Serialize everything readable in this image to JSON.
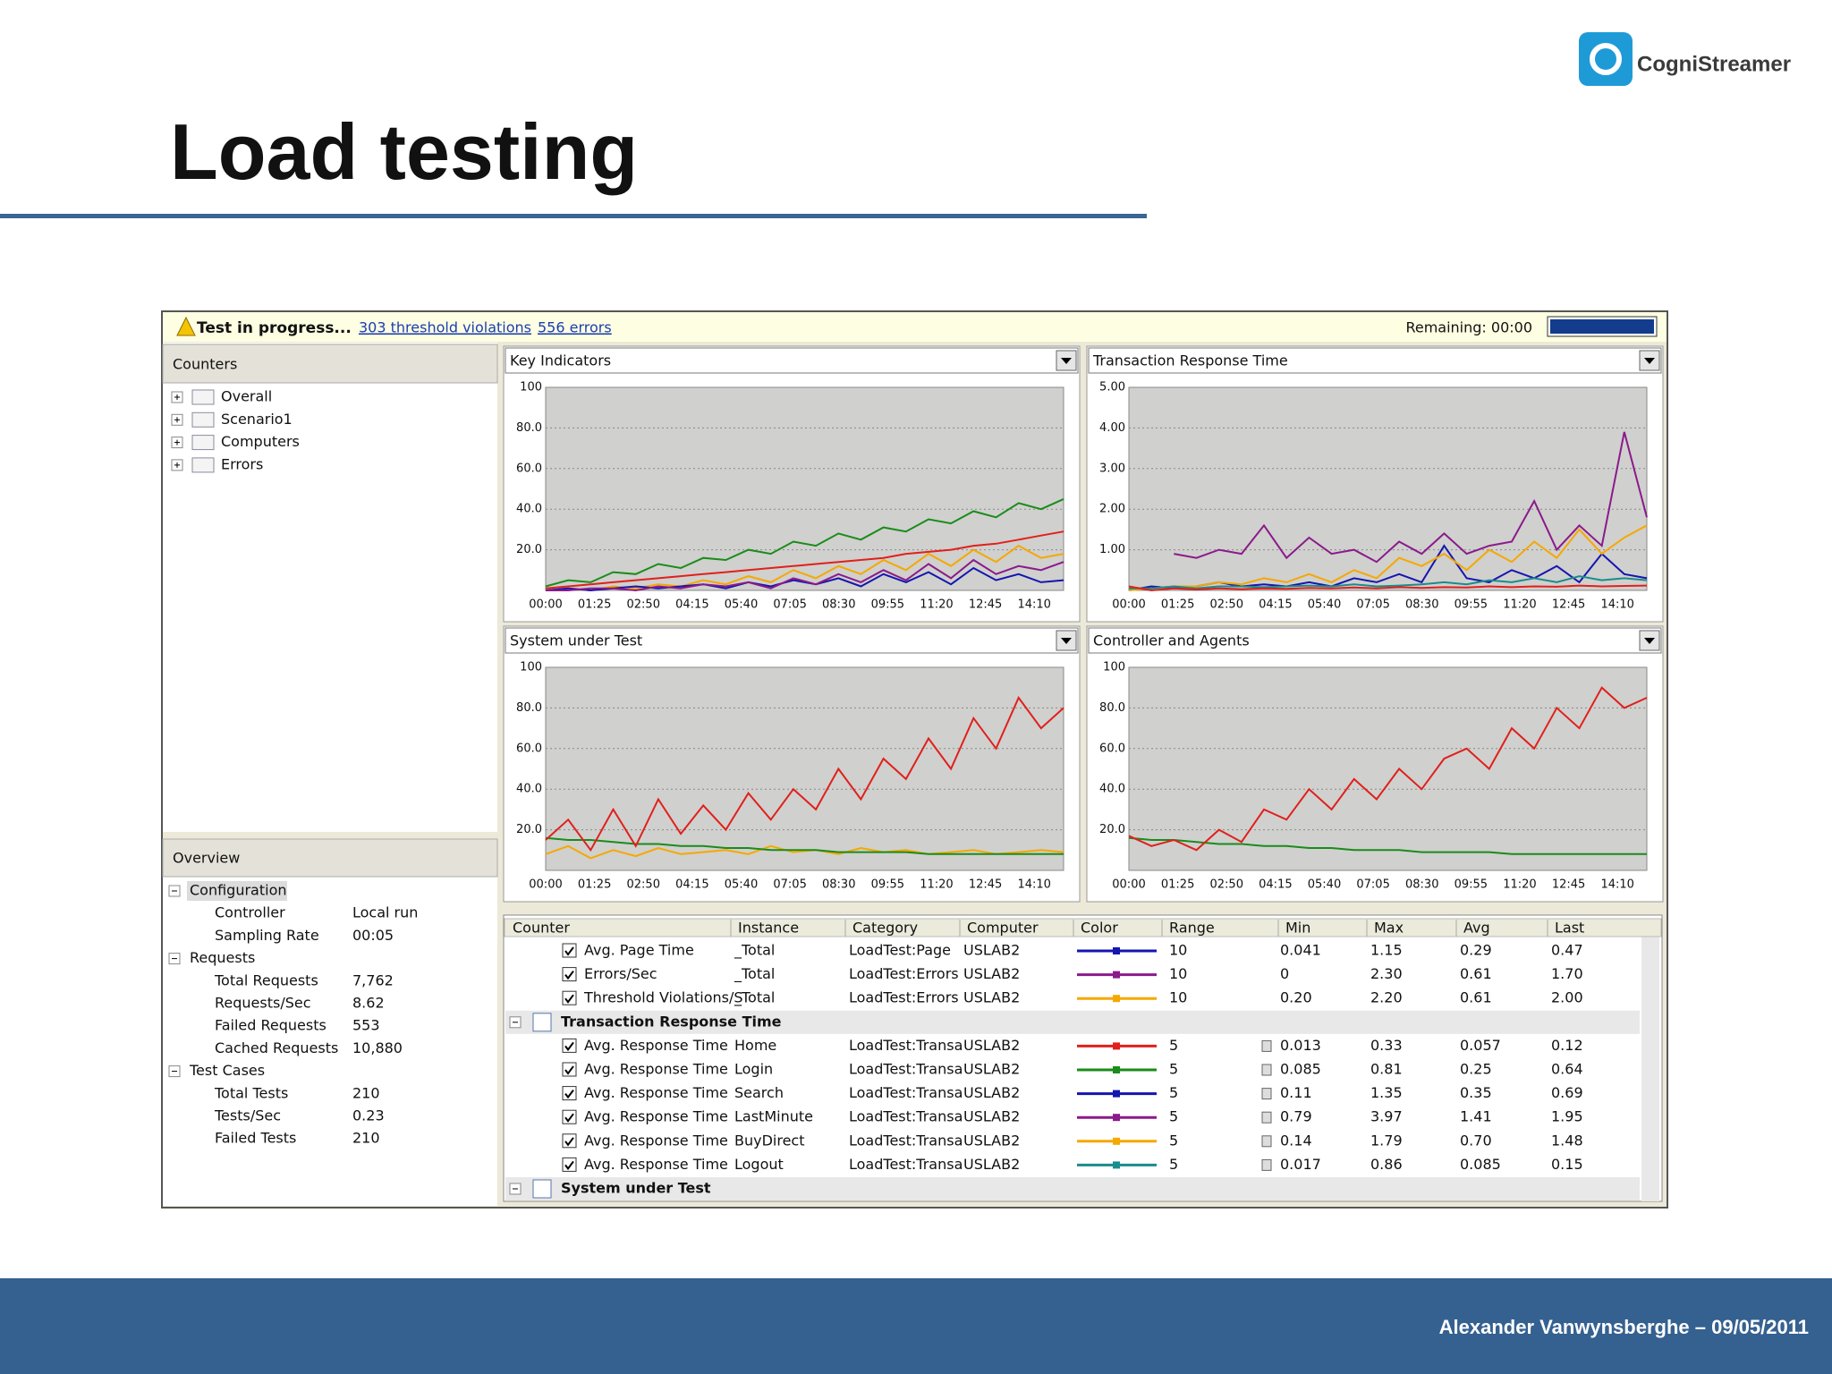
{
  "slide": {
    "title": "Load testing",
    "logo": "CogniStreamer",
    "footer": "Alexander Vanwynsberghe – 09/05/2011"
  },
  "status": {
    "text": "Test in progress...",
    "violations": "303 threshold violations",
    "errors": "556 errors",
    "remaining": "Remaining: 00:00"
  },
  "counters": {
    "title": "Counters",
    "items": [
      "Overall",
      "Scenario1",
      "Computers",
      "Errors"
    ]
  },
  "overview": {
    "title": "Overview",
    "groups": [
      {
        "name": "Configuration",
        "rows": [
          [
            "Controller",
            "Local run"
          ],
          [
            "Sampling Rate",
            "00:05"
          ]
        ]
      },
      {
        "name": "Requests",
        "rows": [
          [
            "Total Requests",
            "7,762"
          ],
          [
            "Requests/Sec",
            "8.62"
          ],
          [
            "Failed Requests",
            "553"
          ],
          [
            "Cached Requests",
            "10,880"
          ]
        ]
      },
      {
        "name": "Test Cases",
        "rows": [
          [
            "Total Tests",
            "210"
          ],
          [
            "Tests/Sec",
            "0.23"
          ],
          [
            "Failed Tests",
            "210"
          ]
        ]
      }
    ]
  },
  "chart_data": [
    {
      "type": "line",
      "title": "Key Indicators",
      "ylim": [
        0,
        100
      ],
      "yticks": [
        {
          "value": 20,
          "label": "20.0"
        },
        {
          "value": 40,
          "label": "40.0"
        },
        {
          "value": 60,
          "label": "60.0"
        },
        {
          "value": 80,
          "label": "80.0"
        },
        100
      ],
      "xticks": [
        "00:00",
        "01:25",
        "02:50",
        "04:15",
        "05:40",
        "07:05",
        "08:30",
        "09:55",
        "11:20",
        "12:45",
        "14:10"
      ],
      "grid": true,
      "series": [
        {
          "color": "#1a8c1a",
          "values": [
            2,
            5,
            4,
            9,
            8,
            13,
            11,
            16,
            15,
            20,
            18,
            24,
            22,
            28,
            25,
            31,
            29,
            35,
            33,
            39,
            36,
            43,
            40,
            45
          ]
        },
        {
          "color": "#e0201c",
          "values": [
            1,
            2,
            3,
            4,
            5,
            6,
            7,
            8,
            9,
            10,
            11,
            12,
            13,
            14,
            15,
            16,
            18,
            19,
            20,
            22,
            23,
            25,
            27,
            29
          ]
        },
        {
          "color": "#f5a800",
          "values": [
            0,
            1,
            0,
            2,
            1,
            3,
            2,
            5,
            3,
            7,
            4,
            10,
            6,
            12,
            8,
            15,
            10,
            18,
            12,
            20,
            14,
            22,
            16,
            18
          ]
        },
        {
          "color": "#1515b0",
          "values": [
            0,
            1,
            0,
            1,
            2,
            1,
            2,
            3,
            1,
            4,
            2,
            5,
            3,
            6,
            2,
            8,
            4,
            9,
            3,
            11,
            5,
            8,
            4,
            5
          ]
        },
        {
          "color": "#8b1a8b",
          "values": [
            0,
            0,
            1,
            1,
            0,
            2,
            1,
            3,
            2,
            4,
            1,
            6,
            3,
            8,
            4,
            10,
            5,
            13,
            6,
            15,
            8,
            12,
            10,
            14
          ]
        }
      ]
    },
    {
      "type": "line",
      "title": "Transaction Response Time",
      "ylim": [
        0,
        5
      ],
      "yticks": [
        {
          "value": 1,
          "label": "1.00"
        },
        {
          "value": 2,
          "label": "2.00"
        },
        {
          "value": 3,
          "label": "3.00"
        },
        {
          "value": 4,
          "label": "4.00"
        },
        {
          "value": 5,
          "label": "5.00"
        }
      ],
      "xticks": [
        "00:00",
        "01:25",
        "02:50",
        "04:15",
        "05:40",
        "07:05",
        "08:30",
        "09:55",
        "11:20",
        "12:45",
        "14:10"
      ],
      "grid": true,
      "series": [
        {
          "color": "#8b1a8b",
          "values": [
            null,
            null,
            0.9,
            0.8,
            1.0,
            0.9,
            1.6,
            0.8,
            1.3,
            0.9,
            1.0,
            0.7,
            1.2,
            0.9,
            1.4,
            0.9,
            1.1,
            1.2,
            2.2,
            1.0,
            1.6,
            1.1,
            3.9,
            1.8
          ]
        },
        {
          "color": "#1515b0",
          "values": [
            0,
            0.1,
            0.05,
            0.1,
            0.2,
            0.1,
            0.15,
            0.1,
            0.2,
            0.1,
            0.3,
            0.2,
            0.4,
            0.2,
            1.1,
            0.3,
            0.2,
            0.5,
            0.3,
            0.6,
            0.2,
            0.9,
            0.4,
            0.3
          ]
        },
        {
          "color": "#f5a800",
          "values": [
            0,
            0.05,
            0.1,
            0.1,
            0.2,
            0.15,
            0.3,
            0.2,
            0.4,
            0.2,
            0.5,
            0.3,
            0.8,
            0.6,
            0.9,
            0.5,
            1.0,
            0.7,
            1.2,
            0.8,
            1.5,
            0.9,
            1.3,
            1.6
          ]
        },
        {
          "color": "#1a8c8c",
          "values": [
            0.05,
            0.05,
            0.1,
            0.05,
            0.1,
            0.1,
            0.08,
            0.1,
            0.12,
            0.1,
            0.15,
            0.1,
            0.12,
            0.15,
            0.2,
            0.15,
            0.25,
            0.2,
            0.3,
            0.2,
            0.35,
            0.25,
            0.3,
            0.25
          ]
        },
        {
          "color": "#e0201c",
          "values": [
            0.1,
            0,
            0.05,
            0.02,
            0.05,
            0.03,
            0.05,
            0.04,
            0.06,
            0.05,
            0.07,
            0.05,
            0.08,
            0.06,
            0.08,
            0.07,
            0.1,
            0.08,
            0.1,
            0.09,
            0.12,
            0.1,
            0.11,
            0.12
          ]
        }
      ]
    },
    {
      "type": "line",
      "title": "System under Test",
      "ylim": [
        0,
        100
      ],
      "yticks": [
        {
          "value": 20,
          "label": "20.0"
        },
        {
          "value": 40,
          "label": "40.0"
        },
        {
          "value": 60,
          "label": "60.0"
        },
        {
          "value": 80,
          "label": "80.0"
        },
        100
      ],
      "xticks": [
        "00:00",
        "01:25",
        "02:50",
        "04:15",
        "05:40",
        "07:05",
        "08:30",
        "09:55",
        "11:20",
        "12:45",
        "14:10"
      ],
      "grid": true,
      "series": [
        {
          "color": "#f5a800",
          "values": [
            8,
            12,
            6,
            10,
            7,
            11,
            8,
            9,
            10,
            8,
            12,
            9,
            10,
            8,
            11,
            9,
            10,
            8,
            9,
            10,
            8,
            9,
            10,
            9
          ]
        },
        {
          "color": "#1a8c1a",
          "values": [
            16,
            15,
            15,
            14,
            13,
            13,
            12,
            12,
            11,
            11,
            10,
            10,
            10,
            9,
            9,
            9,
            9,
            8,
            8,
            8,
            8,
            8,
            8,
            8
          ]
        },
        {
          "color": "#e0201c",
          "values": [
            15,
            25,
            10,
            30,
            12,
            35,
            18,
            32,
            20,
            38,
            25,
            40,
            30,
            50,
            35,
            55,
            45,
            65,
            50,
            75,
            60,
            85,
            70,
            80
          ]
        }
      ]
    },
    {
      "type": "line",
      "title": "Controller and Agents",
      "ylim": [
        0,
        100
      ],
      "yticks": [
        {
          "value": 20,
          "label": "20.0"
        },
        {
          "value": 40,
          "label": "40.0"
        },
        {
          "value": 60,
          "label": "60.0"
        },
        {
          "value": 80,
          "label": "80.0"
        },
        100
      ],
      "xticks": [
        "00:00",
        "01:25",
        "02:50",
        "04:15",
        "05:40",
        "07:05",
        "08:30",
        "09:55",
        "11:20",
        "12:45",
        "14:10"
      ],
      "grid": true,
      "series": [
        {
          "color": "#1a8c1a",
          "values": [
            16,
            15,
            15,
            14,
            13,
            13,
            12,
            12,
            11,
            11,
            10,
            10,
            10,
            9,
            9,
            9,
            9,
            8,
            8,
            8,
            8,
            8,
            8,
            8
          ]
        },
        {
          "color": "#e0201c",
          "values": [
            17,
            12,
            15,
            10,
            20,
            14,
            30,
            25,
            40,
            30,
            45,
            35,
            50,
            40,
            55,
            60,
            50,
            70,
            60,
            80,
            70,
            90,
            80,
            85
          ]
        }
      ]
    }
  ],
  "table": {
    "headers": [
      "Counter",
      "Instance",
      "Category",
      "Computer",
      "Color",
      "Range",
      "Min",
      "Max",
      "Avg",
      "Last"
    ],
    "rows": [
      {
        "color": "#1515b0",
        "cells": [
          "Avg. Page Time",
          "_Total",
          "LoadTest:Page",
          "USLAB2",
          "10",
          "0.041",
          "1.15",
          "0.29",
          "0.47"
        ]
      },
      {
        "color": "#8b1a8b",
        "cells": [
          "Errors/Sec",
          "_Total",
          "LoadTest:Errors",
          "USLAB2",
          "10",
          "0",
          "2.30",
          "0.61",
          "1.70"
        ]
      },
      {
        "color": "#f5a800",
        "cells": [
          "Threshold Violations/S",
          "_Total",
          "LoadTest:Errors",
          "USLAB2",
          "10",
          "0.20",
          "2.20",
          "0.61",
          "2.00"
        ]
      },
      {
        "group": "Transaction Response Time"
      },
      {
        "color": "#e0201c",
        "cells": [
          "Avg. Response Time",
          "Home",
          "LoadTest:Transa",
          "USLAB2",
          "5",
          "0.013",
          "0.33",
          "0.057",
          "0.12"
        ]
      },
      {
        "color": "#1a8c1a",
        "cells": [
          "Avg. Response Time",
          "Login",
          "LoadTest:Transa",
          "USLAB2",
          "5",
          "0.085",
          "0.81",
          "0.25",
          "0.64"
        ]
      },
      {
        "color": "#1515b0",
        "cells": [
          "Avg. Response Time",
          "Search",
          "LoadTest:Transa",
          "USLAB2",
          "5",
          "0.11",
          "1.35",
          "0.35",
          "0.69"
        ]
      },
      {
        "color": "#8b1a8b",
        "cells": [
          "Avg. Response Time",
          "LastMinute",
          "LoadTest:Transa",
          "USLAB2",
          "5",
          "0.79",
          "3.97",
          "1.41",
          "1.95"
        ]
      },
      {
        "color": "#f5a800",
        "cells": [
          "Avg. Response Time",
          "BuyDirect",
          "LoadTest:Transa",
          "USLAB2",
          "5",
          "0.14",
          "1.79",
          "0.70",
          "1.48"
        ]
      },
      {
        "color": "#1a8c8c",
        "cells": [
          "Avg. Response Time",
          "Logout",
          "LoadTest:Transa",
          "USLAB2",
          "5",
          "0.017",
          "0.86",
          "0.085",
          "0.15"
        ]
      },
      {
        "group": "System under Test"
      }
    ]
  }
}
